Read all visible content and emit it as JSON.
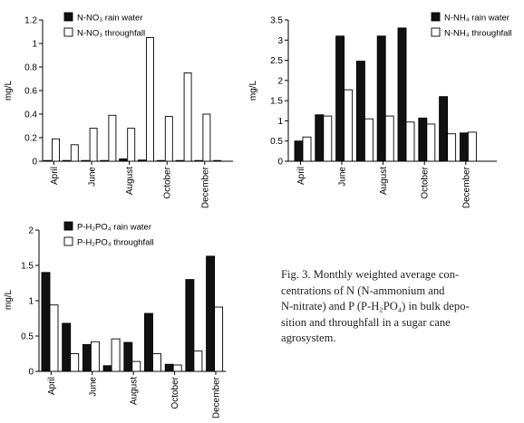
{
  "chart_data": [
    {
      "type": "bar",
      "id": "nitrate",
      "ylabel": "mg/L",
      "ylim": [
        0,
        1.2
      ],
      "yticks": [
        "0",
        "0.2",
        "0.4",
        "0.6",
        "0.8",
        "1",
        "1.2"
      ],
      "months": 10,
      "xtick_labels": [
        {
          "month": 0,
          "label": "April"
        },
        {
          "month": 2,
          "label": "June"
        },
        {
          "month": 4,
          "label": "August"
        },
        {
          "month": 6,
          "label": "October"
        },
        {
          "month": 8,
          "label": "December"
        }
      ],
      "series": [
        {
          "name": "N-NO₃ rain water",
          "fill": "#111111",
          "values": [
            0.005,
            0.005,
            0.005,
            0.005,
            0.02,
            0.01,
            0.005,
            0.005,
            0.005,
            0.005
          ]
        },
        {
          "name": "N-NO₃ throughfall",
          "fill": "#ffffff",
          "values": [
            0.19,
            0.14,
            0.28,
            0.39,
            0.28,
            1.05,
            0.38,
            0.75,
            0.4,
            0.0
          ]
        }
      ],
      "legend_position": "top-left"
    },
    {
      "type": "bar",
      "id": "ammonium",
      "ylabel": "mg/L",
      "ylim": [
        0,
        3.5
      ],
      "yticks": [
        "0",
        "0.5",
        "1",
        "1.5",
        "2",
        "2.5",
        "3",
        "3.5"
      ],
      "months": 10,
      "xtick_labels": [
        {
          "month": 0,
          "label": "April"
        },
        {
          "month": 2,
          "label": "June"
        },
        {
          "month": 4,
          "label": "August"
        },
        {
          "month": 6,
          "label": "October"
        },
        {
          "month": 8,
          "label": "December"
        }
      ],
      "series": [
        {
          "name": "N-NH₄ rain water",
          "fill": "#111111",
          "values": [
            0.5,
            1.15,
            3.1,
            2.48,
            3.1,
            3.3,
            1.07,
            1.6,
            0.7,
            0.0
          ]
        },
        {
          "name": "N-NH₄ throughfall",
          "fill": "#ffffff",
          "values": [
            0.6,
            1.12,
            1.77,
            1.05,
            1.12,
            0.97,
            0.92,
            0.68,
            0.72,
            0.0
          ]
        }
      ],
      "legend_position": "top-right"
    },
    {
      "type": "bar",
      "id": "phosphate",
      "ylabel": "mg/L",
      "ylim": [
        0,
        2
      ],
      "yticks": [
        "0",
        "0.5",
        "1",
        "1.5",
        "2"
      ],
      "months": 9,
      "xtick_labels": [
        {
          "month": 0,
          "label": "April"
        },
        {
          "month": 2,
          "label": "June"
        },
        {
          "month": 4,
          "label": "August"
        },
        {
          "month": 6,
          "label": "October"
        },
        {
          "month": 8,
          "label": "December"
        }
      ],
      "series": [
        {
          "name": "P-H₂PO₄ rain water",
          "fill": "#111111",
          "values": [
            1.4,
            0.68,
            0.38,
            0.08,
            0.41,
            0.82,
            0.1,
            1.3,
            1.63
          ]
        },
        {
          "name": "P-H₂PO₄ throughfall",
          "fill": "#ffffff",
          "values": [
            0.94,
            0.25,
            0.42,
            0.46,
            0.14,
            0.25,
            0.09,
            0.29,
            0.91
          ]
        }
      ],
      "legend_position": "top-left"
    }
  ],
  "caption": {
    "lines": [
      "Fig. 3. Monthly weighted average con-",
      "centrations of N (N-ammonium and",
      "N-nitrate) and P (P-H₂PO₄) in bulk depo-",
      "sition and throughfall in a sugar cane",
      "agrosystem."
    ]
  }
}
